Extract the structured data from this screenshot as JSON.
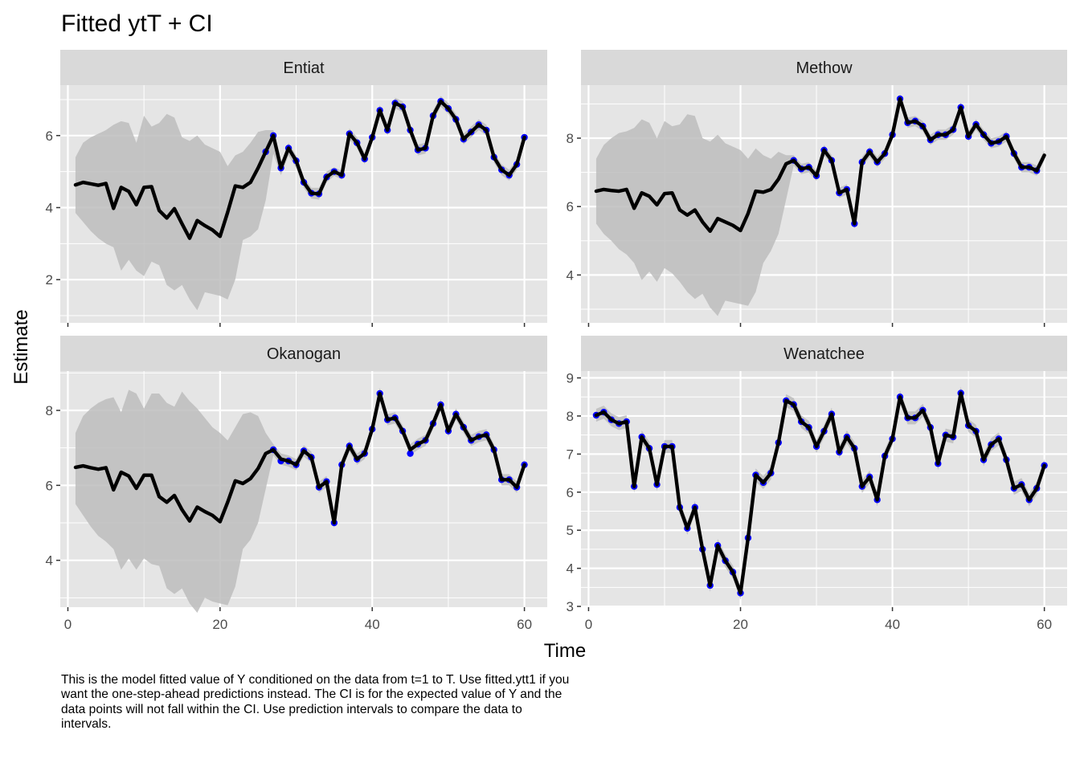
{
  "title": "Fitted ytT + CI",
  "xlabel": "Time",
  "ylabel": "Estimate",
  "caption": "This is the model fitted value of Y conditioned on the data from t=1 to T. Use fitted.ytt1 if you want the one-step-ahead predictions instead. The CI is for the expected value of Y and the data points will not fall within the CI. Use prediction intervals to compare the data to intervals.",
  "colors": {
    "panel_background": "#e5e5e5",
    "grid": "#ffffff",
    "strip_background": "#d9d9d9",
    "ribbon": "#bdbdbd",
    "line": "#000000",
    "points": "#0000ff"
  },
  "chart_data": [
    {
      "type": "line",
      "title": "Entiat",
      "xlim": [
        -1,
        63
      ],
      "ylim": [
        0.8,
        7.4
      ],
      "x_ticks": [
        0,
        20,
        40,
        60
      ],
      "y_ticks": [
        2,
        4,
        6
      ],
      "show_x_tick_labels": false,
      "x_start": 1,
      "fitted": [
        4.63,
        4.7,
        4.66,
        4.62,
        4.67,
        3.98,
        4.56,
        4.45,
        4.08,
        4.56,
        4.58,
        3.92,
        3.71,
        3.97,
        3.55,
        3.15,
        3.64,
        3.5,
        3.38,
        3.2,
        3.87,
        4.6,
        4.56,
        4.7,
        5.1,
        5.55,
        6.0,
        5.1,
        5.65,
        5.3,
        4.7,
        4.4,
        4.38,
        4.85,
        5.0,
        4.9,
        6.05,
        5.8,
        5.35,
        5.95,
        6.7,
        6.15,
        6.9,
        6.8,
        6.15,
        5.6,
        5.65,
        6.55,
        6.95,
        6.75,
        6.45,
        5.9,
        6.1,
        6.3,
        6.15,
        5.4,
        5.05,
        4.9,
        5.2,
        5.95
      ],
      "lower": [
        3.85,
        3.6,
        3.35,
        3.15,
        3.0,
        2.9,
        2.25,
        2.55,
        2.25,
        2.1,
        2.5,
        2.4,
        1.85,
        1.7,
        1.85,
        1.45,
        1.15,
        1.65,
        1.6,
        1.55,
        1.45,
        2.0,
        3.1,
        3.2,
        3.4,
        4.2,
        5.5,
        4.9,
        5.45,
        5.1,
        4.55,
        4.25,
        4.22,
        4.7,
        4.88,
        4.78,
        5.9,
        5.65,
        5.2,
        5.8,
        6.55,
        6.0,
        6.75,
        6.65,
        6.0,
        5.45,
        5.5,
        6.4,
        6.8,
        6.6,
        6.3,
        5.75,
        5.95,
        6.15,
        6.0,
        5.25,
        4.9,
        4.75,
        5.05,
        5.8
      ],
      "upper": [
        5.4,
        5.8,
        5.95,
        6.05,
        6.15,
        6.3,
        6.4,
        6.35,
        5.8,
        6.55,
        6.25,
        6.35,
        6.6,
        6.5,
        5.95,
        5.85,
        6.0,
        5.75,
        5.65,
        5.55,
        5.15,
        5.45,
        5.55,
        5.8,
        6.1,
        6.15,
        6.15,
        5.25,
        5.8,
        5.45,
        4.85,
        4.55,
        4.55,
        5.0,
        5.12,
        5.02,
        6.2,
        5.95,
        5.5,
        6.1,
        6.85,
        6.3,
        7.05,
        6.95,
        6.3,
        5.75,
        5.8,
        6.7,
        7.1,
        6.9,
        6.6,
        6.05,
        6.25,
        6.45,
        6.3,
        5.55,
        5.2,
        5.05,
        5.35,
        6.1
      ],
      "observed_x": [
        26,
        27,
        28,
        29,
        30,
        31,
        32,
        33,
        34,
        35,
        36,
        37,
        38,
        39,
        40,
        41,
        42,
        43,
        44,
        45,
        46,
        47,
        48,
        49,
        50,
        51,
        52,
        53,
        54,
        55,
        56,
        57,
        58,
        59,
        60
      ],
      "observed_y": [
        5.55,
        6.0,
        5.1,
        5.65,
        5.3,
        4.7,
        4.4,
        4.38,
        4.85,
        5.0,
        4.9,
        6.05,
        5.8,
        5.35,
        5.95,
        6.7,
        6.15,
        6.9,
        6.8,
        6.15,
        5.6,
        5.65,
        6.55,
        6.95,
        6.75,
        6.45,
        5.9,
        6.1,
        6.3,
        6.15,
        5.4,
        5.05,
        4.9,
        5.2,
        5.95
      ]
    },
    {
      "type": "line",
      "title": "Methow",
      "xlim": [
        -1,
        63
      ],
      "ylim": [
        2.6,
        9.55
      ],
      "x_ticks": [
        0,
        20,
        40,
        60
      ],
      "y_ticks": [
        4,
        6,
        8
      ],
      "show_x_tick_labels": false,
      "x_start": 1,
      "fitted": [
        6.45,
        6.5,
        6.47,
        6.45,
        6.5,
        5.95,
        6.4,
        6.3,
        6.05,
        6.38,
        6.4,
        5.9,
        5.75,
        5.9,
        5.55,
        5.28,
        5.65,
        5.55,
        5.45,
        5.3,
        5.8,
        6.45,
        6.42,
        6.5,
        6.8,
        7.25,
        7.35,
        7.1,
        7.15,
        6.9,
        7.65,
        7.35,
        6.4,
        6.5,
        5.5,
        7.3,
        7.6,
        7.3,
        7.55,
        8.1,
        9.15,
        8.45,
        8.5,
        8.35,
        7.95,
        8.1,
        8.1,
        8.25,
        8.9,
        8.05,
        8.4,
        8.1,
        7.85,
        7.9,
        8.05,
        7.55,
        7.15,
        7.15,
        7.05,
        7.5
      ],
      "lower": [
        5.5,
        5.2,
        5.0,
        4.75,
        4.6,
        4.35,
        3.85,
        4.1,
        3.8,
        4.2,
        4.05,
        3.8,
        3.5,
        3.3,
        3.45,
        3.05,
        2.8,
        3.25,
        3.2,
        3.15,
        3.1,
        3.5,
        4.35,
        4.7,
        5.2,
        6.2,
        7.2,
        6.95,
        7.0,
        6.75,
        7.5,
        7.2,
        6.25,
        6.35,
        5.35,
        7.15,
        7.45,
        7.15,
        7.4,
        7.95,
        9.0,
        8.3,
        8.35,
        8.2,
        7.8,
        7.95,
        7.95,
        8.1,
        8.75,
        7.9,
        8.25,
        7.95,
        7.7,
        7.75,
        7.9,
        7.4,
        7.0,
        7.0,
        6.9,
        7.35
      ],
      "upper": [
        7.4,
        7.8,
        8.0,
        8.15,
        8.2,
        8.3,
        8.55,
        8.45,
        8.0,
        8.5,
        8.35,
        8.4,
        8.7,
        8.65,
        8.0,
        7.9,
        8.1,
        7.85,
        7.75,
        7.65,
        7.4,
        7.7,
        7.5,
        7.4,
        7.6,
        7.5,
        7.5,
        7.25,
        7.3,
        7.05,
        7.8,
        7.5,
        6.55,
        6.65,
        5.65,
        7.45,
        7.75,
        7.45,
        7.7,
        8.25,
        9.3,
        8.6,
        8.65,
        8.5,
        8.1,
        8.25,
        8.25,
        8.4,
        9.05,
        8.2,
        8.55,
        8.25,
        8.0,
        8.05,
        8.2,
        7.7,
        7.3,
        7.3,
        7.2,
        7.65
      ],
      "observed_x": [
        27,
        28,
        29,
        30,
        31,
        32,
        33,
        34,
        35,
        36,
        37,
        38,
        39,
        40,
        41,
        42,
        43,
        44,
        45,
        46,
        47,
        48,
        49,
        50,
        51,
        52,
        53,
        54,
        55,
        56,
        57,
        58,
        59
      ],
      "observed_y": [
        7.35,
        7.1,
        7.15,
        6.9,
        7.65,
        7.35,
        6.4,
        6.5,
        5.5,
        7.3,
        7.6,
        7.3,
        7.55,
        8.1,
        9.15,
        8.45,
        8.5,
        8.35,
        7.95,
        8.1,
        8.1,
        8.25,
        8.9,
        8.05,
        8.4,
        8.1,
        7.85,
        7.9,
        8.05,
        7.55,
        7.15,
        7.15,
        7.05
      ]
    },
    {
      "type": "line",
      "title": "Okanogan",
      "xlim": [
        -1,
        63
      ],
      "ylim": [
        2.75,
        9.05
      ],
      "x_ticks": [
        0,
        20,
        40,
        60
      ],
      "y_ticks": [
        4,
        6,
        8
      ],
      "show_x_tick_labels": true,
      "x_start": 1,
      "fitted": [
        6.48,
        6.52,
        6.47,
        6.43,
        6.47,
        5.88,
        6.35,
        6.25,
        5.92,
        6.27,
        6.27,
        5.7,
        5.55,
        5.73,
        5.35,
        5.05,
        5.42,
        5.3,
        5.2,
        5.03,
        5.55,
        6.12,
        6.05,
        6.18,
        6.45,
        6.85,
        6.95,
        6.7,
        6.65,
        6.55,
        6.92,
        6.75,
        5.95,
        6.1,
        5.0,
        6.55,
        7.05,
        6.7,
        6.85,
        7.5,
        8.45,
        7.75,
        7.8,
        7.45,
        6.95,
        7.1,
        7.2,
        7.65,
        8.15,
        7.45,
        7.9,
        7.55,
        7.2,
        7.3,
        7.35,
        6.95,
        6.15,
        6.15,
        5.95,
        6.55
      ],
      "lower": [
        5.5,
        5.2,
        4.9,
        4.65,
        4.5,
        4.3,
        3.75,
        4.05,
        3.75,
        4.05,
        3.9,
        3.85,
        3.25,
        3.1,
        3.25,
        2.85,
        2.6,
        3.0,
        2.9,
        2.85,
        2.8,
        3.3,
        4.3,
        4.55,
        5.0,
        5.9,
        6.8,
        6.55,
        6.5,
        6.4,
        6.77,
        6.6,
        5.8,
        5.95,
        4.85,
        6.4,
        6.9,
        6.55,
        6.7,
        7.35,
        8.3,
        7.6,
        7.65,
        7.3,
        6.8,
        6.95,
        7.05,
        7.5,
        8.0,
        7.3,
        7.75,
        7.4,
        7.05,
        7.15,
        7.2,
        6.8,
        6.0,
        6.0,
        5.8,
        6.4
      ],
      "upper": [
        7.4,
        7.85,
        8.05,
        8.2,
        8.3,
        8.35,
        7.95,
        8.55,
        8.45,
        8.05,
        8.45,
        8.45,
        8.2,
        8.1,
        8.5,
        8.25,
        8.05,
        7.8,
        7.55,
        7.4,
        7.2,
        7.55,
        7.9,
        7.95,
        7.85,
        7.4,
        7.1,
        6.85,
        6.8,
        6.7,
        7.07,
        6.9,
        6.1,
        6.25,
        5.15,
        6.7,
        7.2,
        6.85,
        7.0,
        7.65,
        8.6,
        7.9,
        7.95,
        7.6,
        7.1,
        7.25,
        7.35,
        7.8,
        8.3,
        7.6,
        8.05,
        7.7,
        7.35,
        7.45,
        7.5,
        7.1,
        6.3,
        6.3,
        6.1,
        6.7
      ],
      "observed_x": [
        27,
        28,
        29,
        30,
        31,
        32,
        33,
        34,
        35,
        36,
        37,
        38,
        39,
        40,
        41,
        42,
        43,
        44,
        45,
        46,
        47,
        48,
        49,
        50,
        51,
        52,
        53,
        54,
        55,
        56,
        57,
        58,
        59,
        60
      ],
      "observed_y": [
        6.95,
        6.65,
        6.65,
        6.55,
        6.92,
        6.75,
        5.95,
        6.1,
        5.0,
        6.55,
        7.05,
        6.7,
        6.85,
        7.5,
        8.45,
        7.75,
        7.8,
        7.45,
        6.85,
        7.1,
        7.2,
        7.65,
        8.15,
        7.45,
        7.9,
        7.55,
        7.2,
        7.3,
        7.35,
        6.95,
        6.15,
        6.15,
        5.95,
        6.55
      ]
    },
    {
      "type": "line",
      "title": "Wenatchee",
      "xlim": [
        -1,
        63
      ],
      "ylim": [
        2.98,
        9.18
      ],
      "x_ticks": [
        0,
        20,
        40,
        60
      ],
      "y_ticks": [
        3,
        4,
        5,
        6,
        7,
        8,
        9
      ],
      "show_x_tick_labels": true,
      "x_start": 1,
      "fitted": [
        8.02,
        8.1,
        7.9,
        7.8,
        7.85,
        6.15,
        7.45,
        7.15,
        6.2,
        7.2,
        7.2,
        5.6,
        5.05,
        5.6,
        4.5,
        3.55,
        4.6,
        4.2,
        3.9,
        3.35,
        4.8,
        6.45,
        6.25,
        6.5,
        7.3,
        8.4,
        8.3,
        7.85,
        7.7,
        7.2,
        7.6,
        8.05,
        7.05,
        7.45,
        7.15,
        6.15,
        6.4,
        5.8,
        6.95,
        7.4,
        8.5,
        7.95,
        7.95,
        8.15,
        7.7,
        6.75,
        7.5,
        7.45,
        8.6,
        7.75,
        7.6,
        6.85,
        7.25,
        7.4,
        6.85,
        6.1,
        6.2,
        5.8,
        6.1,
        6.7
      ],
      "lower": [
        7.85,
        7.93,
        7.73,
        7.63,
        7.68,
        5.98,
        7.28,
        6.98,
        6.03,
        7.03,
        7.03,
        5.43,
        4.88,
        5.43,
        4.33,
        3.38,
        4.43,
        4.03,
        3.73,
        3.18,
        4.63,
        6.28,
        6.08,
        6.33,
        7.13,
        8.23,
        8.13,
        7.68,
        7.53,
        7.03,
        7.43,
        7.88,
        6.88,
        7.28,
        6.98,
        5.98,
        6.23,
        5.63,
        6.78,
        7.23,
        8.33,
        7.78,
        7.78,
        7.98,
        7.53,
        6.58,
        7.33,
        7.28,
        8.43,
        7.58,
        7.43,
        6.68,
        7.08,
        7.23,
        6.68,
        5.93,
        6.03,
        5.63,
        5.93,
        6.53
      ],
      "upper": [
        8.19,
        8.27,
        8.07,
        7.97,
        8.02,
        6.32,
        7.62,
        7.32,
        6.37,
        7.37,
        7.37,
        5.77,
        5.22,
        5.77,
        4.67,
        3.72,
        4.77,
        4.37,
        4.07,
        3.52,
        4.97,
        6.62,
        6.42,
        6.67,
        7.47,
        8.57,
        8.47,
        8.02,
        7.87,
        7.37,
        7.77,
        8.22,
        7.22,
        7.62,
        7.32,
        6.32,
        6.57,
        5.97,
        7.12,
        7.57,
        8.67,
        8.12,
        8.12,
        8.32,
        7.87,
        6.92,
        7.67,
        7.62,
        8.77,
        7.92,
        7.77,
        7.02,
        7.42,
        7.57,
        7.02,
        6.27,
        6.37,
        5.97,
        6.27,
        6.87
      ],
      "observed_x": [
        1,
        2,
        3,
        4,
        5,
        6,
        7,
        8,
        9,
        10,
        11,
        12,
        13,
        14,
        15,
        16,
        17,
        18,
        19,
        20,
        21,
        22,
        23,
        24,
        25,
        26,
        27,
        28,
        29,
        30,
        31,
        32,
        33,
        34,
        35,
        36,
        37,
        38,
        39,
        40,
        41,
        42,
        43,
        44,
        45,
        46,
        47,
        48,
        49,
        50,
        51,
        52,
        53,
        54,
        55,
        56,
        57,
        58,
        59,
        60
      ],
      "observed_y": [
        8.02,
        8.1,
        7.9,
        7.8,
        7.85,
        6.15,
        7.45,
        7.15,
        6.2,
        7.2,
        7.2,
        5.6,
        5.05,
        5.6,
        4.5,
        3.55,
        4.6,
        4.2,
        3.9,
        3.35,
        4.8,
        6.45,
        6.25,
        6.5,
        7.3,
        8.4,
        8.3,
        7.85,
        7.7,
        7.2,
        7.6,
        8.05,
        7.05,
        7.45,
        7.15,
        6.15,
        6.4,
        5.8,
        6.95,
        7.4,
        8.5,
        7.95,
        7.95,
        8.15,
        7.7,
        6.75,
        7.5,
        7.45,
        8.6,
        7.75,
        7.6,
        6.85,
        7.25,
        7.4,
        6.85,
        6.1,
        6.2,
        5.8,
        6.1,
        6.7
      ]
    }
  ]
}
